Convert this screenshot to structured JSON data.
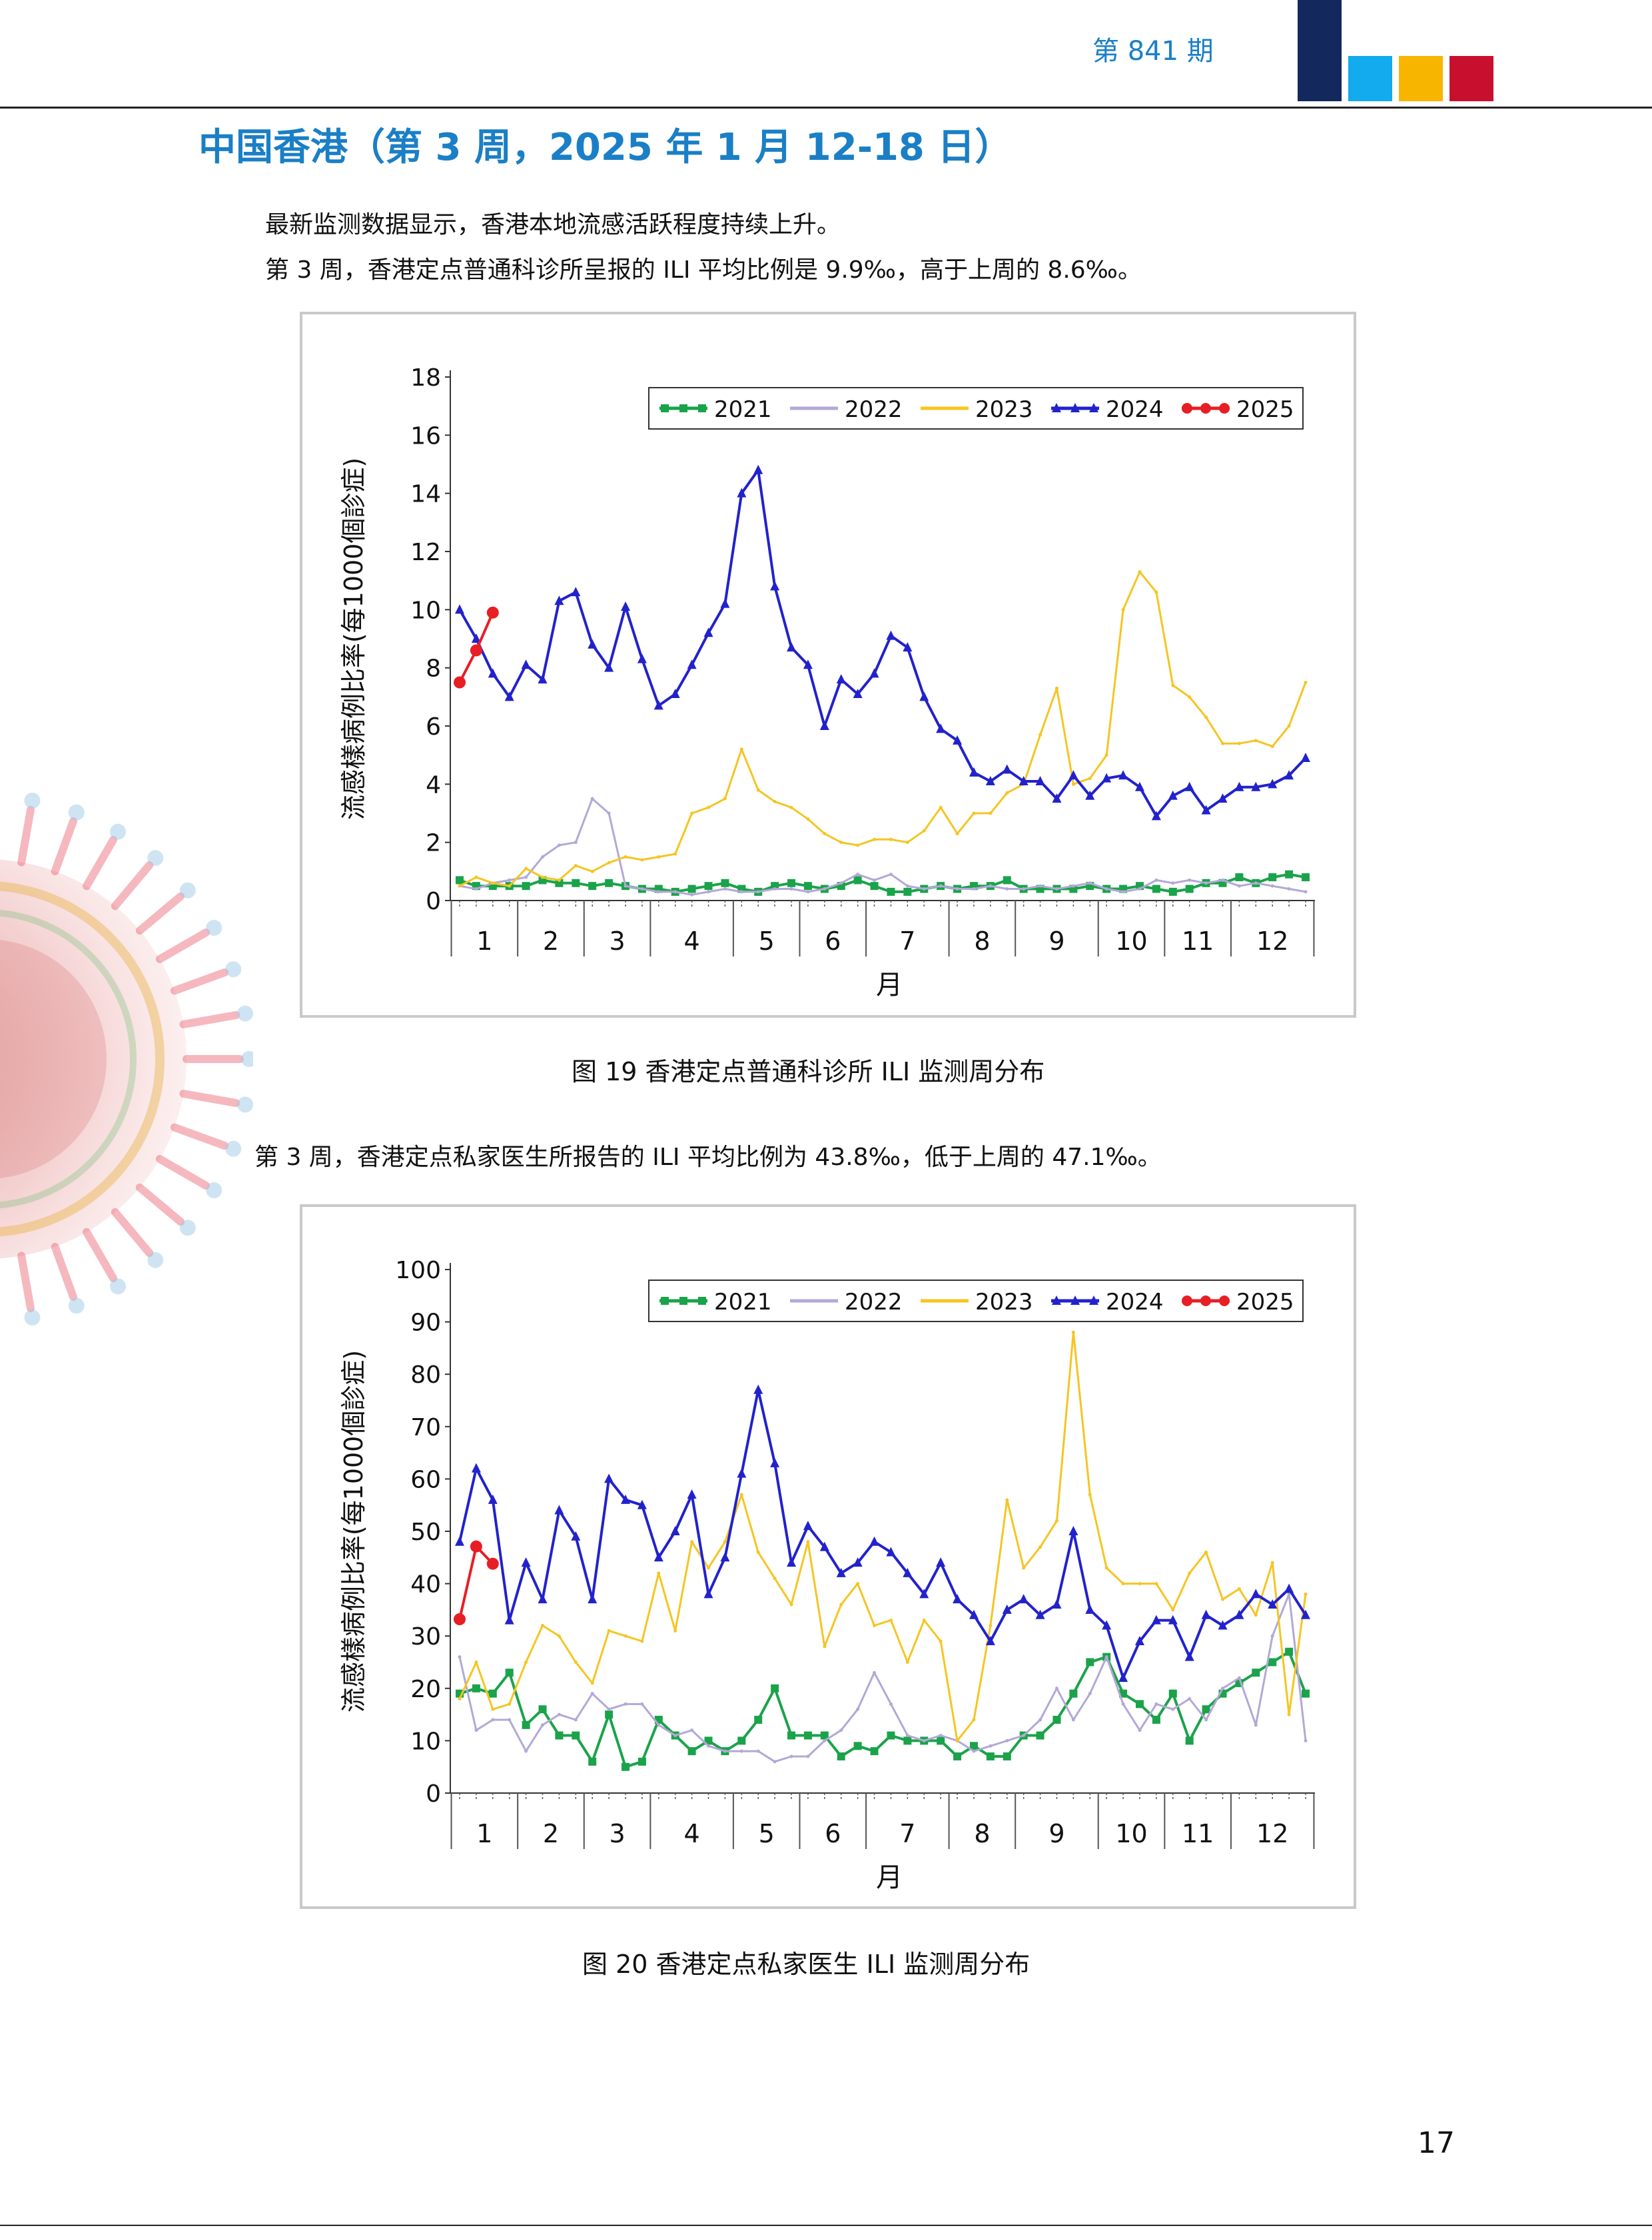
{
  "header": {
    "issue": "第 841 期",
    "colors": {
      "navy": "#13285c",
      "cyan": "#13aaee",
      "yellow": "#f7b500",
      "red": "#c8102e"
    }
  },
  "section_title": "中国香港（第 3 周，2025 年 1 月 12-18 日）",
  "paragraphs": {
    "p1": "最新监测数据显示，香港本地流感活跃程度持续上升。",
    "p2": "第 3 周，香港定点普通科诊所呈报的 ILI 平均比例是 9.9‰，高于上周的 8.6‰。",
    "p3": "第 3 周，香港定点私家医生所报告的 ILI 平均比例为 43.8‰，低于上周的 47.1‰。"
  },
  "captions": {
    "fig19": "图 19  香港定点普通科诊所 ILI 监测周分布",
    "fig20": "图 20   香港定点私家医生 ILI 监测周分布"
  },
  "page_number": "17",
  "chart_data": [
    {
      "type": "line",
      "ylabel": "流感樣病例比率(每1000個診症)",
      "xlabel": "月",
      "ylim": [
        0,
        18
      ],
      "yticks": [
        0,
        2,
        4,
        6,
        8,
        10,
        12,
        14,
        16,
        18
      ],
      "x": "week of year (1-52)",
      "month_labels": [
        "1",
        "2",
        "3",
        "4",
        "5",
        "6",
        "7",
        "8",
        "9",
        "10",
        "11",
        "12"
      ],
      "legend_position": "top-right",
      "series": [
        {
          "name": "2021",
          "color": "#1aa34a",
          "marker": "square",
          "values": [
            0.7,
            0.5,
            0.5,
            0.5,
            0.5,
            0.7,
            0.6,
            0.6,
            0.5,
            0.6,
            0.5,
            0.4,
            0.4,
            0.3,
            0.4,
            0.5,
            0.6,
            0.4,
            0.3,
            0.5,
            0.6,
            0.5,
            0.4,
            0.5,
            0.7,
            0.5,
            0.3,
            0.3,
            0.4,
            0.5,
            0.4,
            0.5,
            0.5,
            0.7,
            0.4,
            0.4,
            0.4,
            0.4,
            0.5,
            0.4,
            0.4,
            0.5,
            0.4,
            0.3,
            0.4,
            0.6,
            0.6,
            0.8,
            0.6,
            0.8,
            0.9,
            0.8
          ]
        },
        {
          "name": "2022",
          "color": "#b3a8d6",
          "marker": "none",
          "values": [
            0.5,
            0.4,
            0.6,
            0.7,
            0.8,
            1.5,
            1.9,
            2.0,
            3.5,
            3.0,
            0.5,
            0.4,
            0.3,
            0.3,
            0.2,
            0.3,
            0.4,
            0.3,
            0.3,
            0.4,
            0.4,
            0.3,
            0.4,
            0.6,
            0.9,
            0.7,
            0.9,
            0.5,
            0.4,
            0.5,
            0.4,
            0.4,
            0.5,
            0.4,
            0.4,
            0.5,
            0.4,
            0.5,
            0.6,
            0.4,
            0.3,
            0.4,
            0.7,
            0.6,
            0.7,
            0.6,
            0.7,
            0.5,
            0.6,
            0.5,
            0.4,
            0.3
          ]
        },
        {
          "name": "2023",
          "color": "#f5c522",
          "marker": "none",
          "values": [
            0.5,
            0.8,
            0.6,
            0.5,
            1.1,
            0.8,
            0.7,
            1.2,
            1.0,
            1.3,
            1.5,
            1.4,
            1.5,
            1.6,
            3.0,
            3.2,
            3.5,
            5.2,
            3.8,
            3.4,
            3.2,
            2.8,
            2.3,
            2.0,
            1.9,
            2.1,
            2.1,
            2.0,
            2.4,
            3.2,
            2.3,
            3.0,
            3.0,
            3.7,
            4.0,
            5.7,
            7.3,
            4.0,
            4.2,
            5.0,
            10.0,
            11.3,
            10.6,
            7.4,
            7.0,
            6.3,
            5.4,
            5.4,
            5.5,
            5.3,
            6.0,
            7.5
          ]
        },
        {
          "name": "2024",
          "color": "#2222cc",
          "marker": "triangle",
          "values": [
            10.0,
            9.0,
            7.8,
            7.0,
            8.1,
            7.6,
            10.3,
            10.6,
            8.8,
            8.0,
            10.1,
            8.3,
            6.7,
            7.1,
            8.1,
            9.2,
            10.2,
            14.0,
            14.8,
            10.8,
            8.7,
            8.1,
            6.0,
            7.6,
            7.1,
            7.8,
            9.1,
            8.7,
            7.0,
            5.9,
            5.5,
            4.4,
            4.1,
            4.5,
            4.1,
            4.1,
            3.5,
            4.3,
            3.6,
            4.2,
            4.3,
            3.9,
            2.9,
            3.6,
            3.9,
            3.1,
            3.5,
            3.9,
            3.9,
            4.0,
            4.3,
            4.9
          ]
        },
        {
          "name": "2025",
          "color": "#e81e25",
          "marker": "circle",
          "values": [
            7.5,
            8.6,
            9.9
          ]
        }
      ]
    },
    {
      "type": "line",
      "ylabel": "流感樣病例比率(每1000個診症)",
      "xlabel": "月",
      "ylim": [
        0,
        100
      ],
      "yticks": [
        0,
        10,
        20,
        30,
        40,
        50,
        60,
        70,
        80,
        90,
        100
      ],
      "x": "week of year (1-52)",
      "month_labels": [
        "1",
        "2",
        "3",
        "4",
        "5",
        "6",
        "7",
        "8",
        "9",
        "10",
        "11",
        "12"
      ],
      "legend_position": "top-right",
      "series": [
        {
          "name": "2021",
          "color": "#1aa34a",
          "marker": "square",
          "values": [
            19,
            20,
            19,
            23,
            13,
            16,
            11,
            11,
            6,
            15,
            5,
            6,
            14,
            11,
            8,
            10,
            8,
            10,
            14,
            20,
            11,
            11,
            11,
            7,
            9,
            8,
            11,
            10,
            10,
            10,
            7,
            9,
            7,
            7,
            11,
            11,
            14,
            19,
            25,
            26,
            19,
            17,
            14,
            19,
            10,
            16,
            19,
            21,
            23,
            25,
            27,
            19
          ]
        },
        {
          "name": "2022",
          "color": "#b3a8d6",
          "marker": "none",
          "values": [
            26,
            12,
            14,
            14,
            8,
            13,
            15,
            14,
            19,
            16,
            17,
            17,
            13,
            11,
            12,
            9,
            8,
            8,
            8,
            6,
            7,
            7,
            10,
            12,
            16,
            23,
            17,
            11,
            10,
            11,
            10,
            8,
            9,
            10,
            11,
            14,
            20,
            14,
            19,
            26,
            17,
            12,
            17,
            16,
            18,
            14,
            20,
            22,
            13,
            30,
            38,
            10
          ]
        },
        {
          "name": "2023",
          "color": "#f5c522",
          "marker": "none",
          "values": [
            18,
            25,
            16,
            17,
            25,
            32,
            30,
            25,
            21,
            31,
            30,
            29,
            42,
            31,
            48,
            43,
            48,
            57,
            46,
            41,
            36,
            48,
            28,
            36,
            40,
            32,
            33,
            25,
            33,
            29,
            10,
            14,
            32,
            56,
            43,
            47,
            52,
            88,
            57,
            43,
            40,
            40,
            40,
            35,
            42,
            46,
            37,
            39,
            34,
            44,
            15,
            38
          ]
        },
        {
          "name": "2024",
          "color": "#2222cc",
          "marker": "triangle",
          "values": [
            48,
            62,
            56,
            33,
            44,
            37,
            54,
            49,
            37,
            60,
            56,
            55,
            45,
            50,
            57,
            38,
            45,
            61,
            77,
            63,
            44,
            51,
            47,
            42,
            44,
            48,
            46,
            42,
            38,
            44,
            37,
            34,
            29,
            35,
            37,
            34,
            36,
            50,
            35,
            32,
            22,
            29,
            33,
            33,
            26,
            34,
            32,
            34,
            38,
            36,
            39,
            34
          ]
        },
        {
          "name": "2025",
          "color": "#e81e25",
          "marker": "circle",
          "values": [
            33.2,
            47.1,
            43.8
          ]
        }
      ]
    }
  ]
}
